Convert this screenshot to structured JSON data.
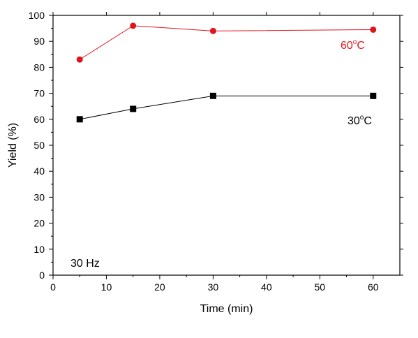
{
  "chart_data": {
    "type": "line",
    "title": "",
    "xlabel": "Time (min)",
    "ylabel": "Yield (%)",
    "xlim": [
      0,
      65
    ],
    "ylim": [
      0,
      100
    ],
    "xticks": [
      0,
      10,
      20,
      30,
      40,
      50,
      60
    ],
    "yticks": [
      0,
      10,
      20,
      30,
      40,
      50,
      60,
      70,
      80,
      90,
      100
    ],
    "grid": false,
    "annotation": "30 Hz",
    "series": [
      {
        "name": "60°C",
        "label_main": "60",
        "label_sup": "o",
        "label_unit": "C",
        "color": "#e0141e",
        "marker": "circle",
        "x": [
          5,
          15,
          30,
          60
        ],
        "y": [
          83,
          96,
          94,
          94.5
        ]
      },
      {
        "name": "30°C",
        "label_main": "30",
        "label_sup": "o",
        "label_unit": "C",
        "color": "#000000",
        "marker": "square",
        "x": [
          5,
          15,
          30,
          60
        ],
        "y": [
          60,
          64,
          69,
          69
        ]
      }
    ]
  }
}
